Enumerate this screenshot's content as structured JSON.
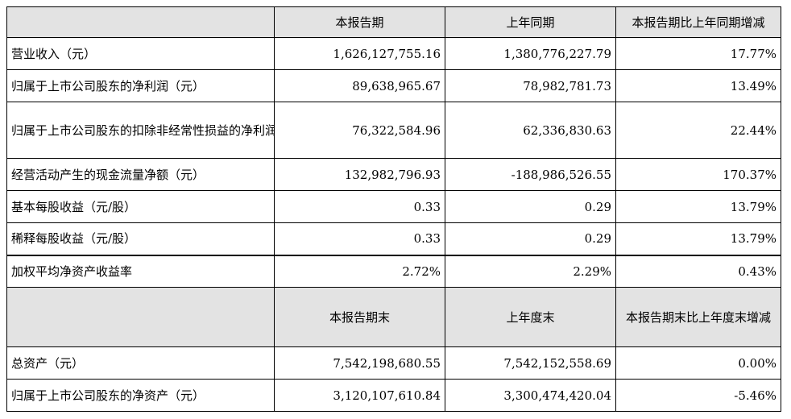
{
  "header_current": {
    "col1": "本报告期",
    "col2": "上年同期",
    "col3": "本报告期比上年同期增减"
  },
  "rows_current": [
    {
      "label": "营业收入（元）",
      "current": "1,626,127,755.16",
      "prior": "1,380,776,227.79",
      "change": "17.77%"
    },
    {
      "label": "归属于上市公司股东的净利润（元）",
      "current": "89,638,965.67",
      "prior": "78,982,781.73",
      "change": "13.49%"
    },
    {
      "label": "归属于上市公司股东的扣除非经常性损益的净利润（元）",
      "current": "76,322,584.96",
      "prior": "62,336,830.63",
      "change": "22.44%"
    },
    {
      "label": "经营活动产生的现金流量净额（元）",
      "current": "132,982,796.93",
      "prior": "-188,986,526.55",
      "change": "170.37%"
    },
    {
      "label": "基本每股收益（元/股）",
      "current": "0.33",
      "prior": "0.29",
      "change": "13.79%"
    },
    {
      "label": "稀释每股收益（元/股）",
      "current": "0.33",
      "prior": "0.29",
      "change": "13.79%"
    },
    {
      "label": "加权平均净资产收益率",
      "current": "2.72%",
      "prior": "2.29%",
      "change": "0.43%"
    }
  ],
  "header_end": {
    "col1": "本报告期末",
    "col2": "上年度末",
    "col3": "本报告期末比上年度末增减"
  },
  "rows_end": [
    {
      "label": "总资产（元）",
      "current": "7,542,198,680.55",
      "prior": "7,542,152,558.69",
      "change": "0.00%"
    },
    {
      "label": "归属于上市公司股东的净资产（元）",
      "current": "3,120,107,610.84",
      "prior": "3,300,474,420.04",
      "change": "-5.46%"
    }
  ]
}
